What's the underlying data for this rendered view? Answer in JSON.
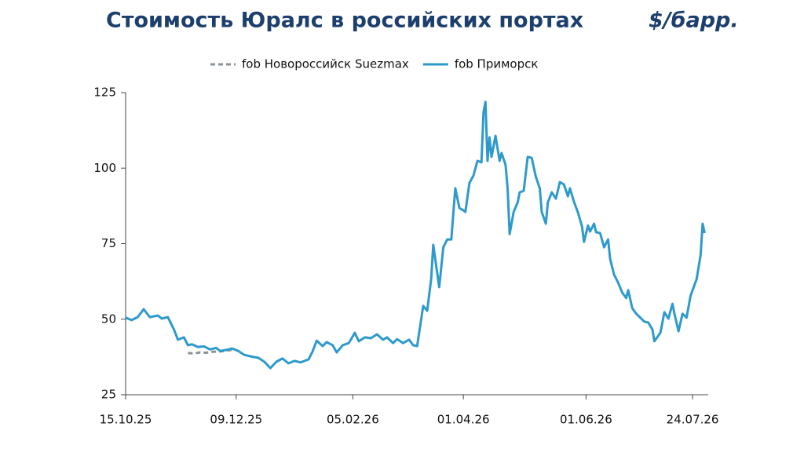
{
  "chart_data": {
    "type": "line",
    "title": "Стоимость Юралс в российских портах",
    "unit": "$/барр.",
    "xlim": [
      "2025-10-15",
      "2026-07-31"
    ],
    "xticks": [
      {
        "value": "2025-10-15",
        "label": "15.10.25"
      },
      {
        "value": "2025-12-09",
        "label": "09.12.25"
      },
      {
        "value": "2026-02-05",
        "label": "05.02.26"
      },
      {
        "value": "2026-04-01",
        "label": "01.04.26"
      },
      {
        "value": "2026-06-01",
        "label": "01.06.26"
      },
      {
        "value": "2026-07-24",
        "label": "24.07.26"
      }
    ],
    "ylim": [
      25,
      125
    ],
    "yticks": [
      25,
      50,
      75,
      100,
      125
    ],
    "grid": false,
    "legend": "top",
    "series": [
      {
        "name": "fob Новороссийск Suezmax",
        "color": "#8a9299",
        "style": "dashed",
        "x": [
          "2025-11-15",
          "2025-11-18",
          "2025-11-21",
          "2025-11-24",
          "2025-11-27",
          "2025-12-01",
          "2025-12-04",
          "2025-12-07"
        ],
        "values": [
          38.8,
          38.7,
          39.0,
          38.9,
          39.2,
          39.3,
          39.6,
          39.8
        ]
      },
      {
        "name": "fob Приморск",
        "color": "#2e9acb",
        "style": "solid",
        "x": [
          "2025-10-15",
          "2025-10-18",
          "2025-10-21",
          "2025-10-24",
          "2025-10-27",
          "2025-10-31",
          "2025-11-02",
          "2025-11-05",
          "2025-11-08",
          "2025-11-10",
          "2025-11-13",
          "2025-11-15",
          "2025-11-17",
          "2025-11-20",
          "2025-11-23",
          "2025-11-26",
          "2025-11-29",
          "2025-12-01",
          "2025-12-04",
          "2025-12-07",
          "2025-12-10",
          "2025-12-13",
          "2025-12-16",
          "2025-12-20",
          "2025-12-23",
          "2025-12-26",
          "2025-12-29",
          "2026-01-01",
          "2026-01-04",
          "2026-01-07",
          "2026-01-10",
          "2026-01-14",
          "2026-01-16",
          "2026-01-18",
          "2026-01-21",
          "2026-01-23",
          "2026-01-26",
          "2026-01-28",
          "2026-01-31",
          "2026-02-03",
          "2026-02-06",
          "2026-02-08",
          "2026-02-11",
          "2026-02-14",
          "2026-02-17",
          "2026-02-20",
          "2026-02-22",
          "2026-02-25",
          "2026-02-27",
          "2026-03-02",
          "2026-03-05",
          "2026-03-07",
          "2026-03-09",
          "2026-03-12",
          "2026-03-14",
          "2026-03-16",
          "2026-03-17",
          "2026-03-20",
          "2026-03-22",
          "2026-03-24",
          "2026-03-26",
          "2026-03-28",
          "2026-03-30",
          "2026-04-01",
          "2026-04-02",
          "2026-04-04",
          "2026-04-06",
          "2026-04-08",
          "2026-04-10",
          "2026-04-11",
          "2026-04-12",
          "2026-04-13",
          "2026-04-14",
          "2026-04-15",
          "2026-04-17",
          "2026-04-19",
          "2026-04-20",
          "2026-04-22",
          "2026-04-23",
          "2026-04-24",
          "2026-04-26",
          "2026-04-28",
          "2026-04-29",
          "2026-05-01",
          "2026-05-03",
          "2026-05-05",
          "2026-05-07",
          "2026-05-09",
          "2026-05-10",
          "2026-05-12",
          "2026-05-13",
          "2026-05-15",
          "2026-05-17",
          "2026-05-19",
          "2026-05-21",
          "2026-05-23",
          "2026-05-24",
          "2026-05-26",
          "2026-05-28",
          "2026-05-30",
          "2026-05-31",
          "2026-06-02",
          "2026-06-03",
          "2026-06-05",
          "2026-06-06",
          "2026-06-08",
          "2026-06-10",
          "2026-06-12",
          "2026-06-13",
          "2026-06-15",
          "2026-06-17",
          "2026-06-19",
          "2026-06-21",
          "2026-06-22",
          "2026-06-24",
          "2026-06-26",
          "2026-06-28",
          "2026-06-30",
          "2026-07-02",
          "2026-07-04",
          "2026-07-05",
          "2026-07-08",
          "2026-07-10",
          "2026-07-12",
          "2026-07-14",
          "2026-07-15",
          "2026-07-17",
          "2026-07-19",
          "2026-07-21",
          "2026-07-23",
          "2026-07-24",
          "2026-07-26",
          "2026-07-28",
          "2026-07-29",
          "2026-07-30"
        ],
        "values": [
          50.5,
          49.7,
          50.7,
          53.3,
          50.7,
          51.2,
          50.2,
          50.7,
          46.6,
          43.2,
          44,
          41.4,
          41.7,
          40.8,
          41,
          40,
          40.5,
          39.5,
          39.8,
          40.3,
          39.5,
          38.2,
          37.7,
          37.2,
          35.9,
          33.8,
          35.9,
          37,
          35.4,
          36.2,
          35.7,
          36.7,
          39.3,
          42.9,
          41.1,
          42.4,
          41.4,
          39,
          41.4,
          42.1,
          45.5,
          42.7,
          44,
          43.7,
          45,
          43.2,
          44,
          42.1,
          43.4,
          42.1,
          43.2,
          41.4,
          41.1,
          54.4,
          52.8,
          63.4,
          74.6,
          60.6,
          73.8,
          76.4,
          76.4,
          93.3,
          86.8,
          86,
          85.5,
          95.1,
          97.5,
          102.4,
          101.9,
          118.5,
          121.9,
          102.4,
          110.2,
          103.7,
          110.7,
          102.4,
          105,
          101.1,
          93.3,
          78.2,
          85.5,
          88.6,
          92,
          92.5,
          103.7,
          103.4,
          97.2,
          93.3,
          85.5,
          81.6,
          88.6,
          92,
          89.9,
          95.4,
          94.6,
          90.7,
          93.3,
          88.9,
          85.3,
          80.8,
          75.6,
          81,
          79,
          81.6,
          78.8,
          78.5,
          73.8,
          76.4,
          69.9,
          64.7,
          62.1,
          58.8,
          57,
          59.6,
          53.6,
          51.8,
          50.5,
          49.2,
          48.9,
          46.6,
          42.7,
          45.5,
          52.3,
          50.2,
          55.1,
          51.8,
          46,
          51.8,
          50.5,
          57.7,
          59.6,
          63.2,
          71.2,
          81.6,
          78.5
        ]
      }
    ]
  }
}
